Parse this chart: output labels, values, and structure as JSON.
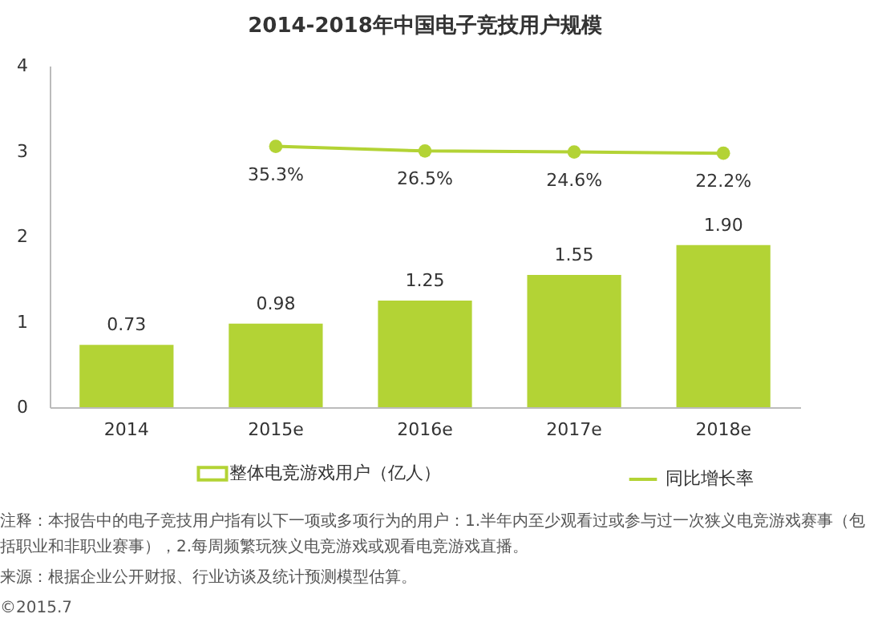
{
  "chart_data": {
    "type": "bar",
    "title": "2014-2018年中国电子竞技用户规模",
    "categories": [
      "2014",
      "2015e",
      "2016e",
      "2017e",
      "2018e"
    ],
    "series": [
      {
        "name": "整体电竞游戏用户（亿人）",
        "color": "#b3d335",
        "values": [
          0.73,
          0.98,
          1.25,
          1.55,
          1.9
        ],
        "value_labels": [
          "0.73",
          "0.98",
          "1.25",
          "1.55",
          "1.90"
        ]
      },
      {
        "name": "同比增长率",
        "type": "line",
        "axis": "y2",
        "color": "#b3d335",
        "values": [
          null,
          35.3,
          26.5,
          24.6,
          22.2
        ],
        "value_labels": [
          null,
          "35.3%",
          "26.5%",
          "24.6%",
          "22.2%"
        ]
      }
    ],
    "ylim": [
      0,
      4
    ],
    "yticks": [
      0,
      1,
      2,
      3,
      4
    ],
    "y2lim": [
      -465,
      190
    ],
    "grid": false,
    "legend": "bottom",
    "marker": "circle",
    "annotations": [
      "注释：本报告中的电子竞技用户指有以下一项或多项行为的用户：1.半年内至少观看过或参与过一次狭义电竞游戏赛事（包括职业和非职业赛事），2.每周频繁玩狭义电竞游戏或观看电竞游戏直播。",
      "来源：根据企业公开财报、行业访谈及统计预测模型估算。",
      "©2015.7"
    ]
  }
}
